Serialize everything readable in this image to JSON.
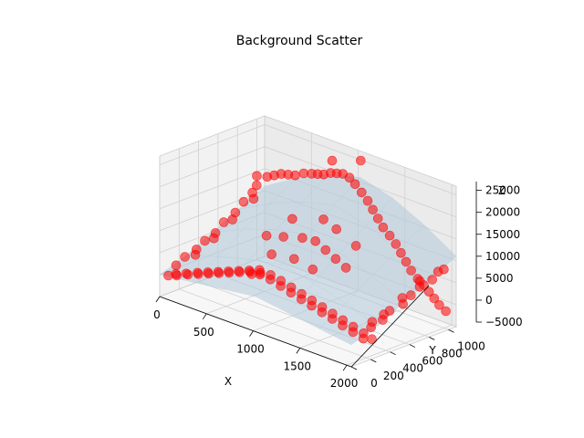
{
  "chart_data": {
    "type": "scatter",
    "title": "Background Scatter",
    "xlabel": "X",
    "ylabel": "Y",
    "zlabel": "Z",
    "xlim": [
      0,
      2048
    ],
    "ylim": [
      0,
      1080
    ],
    "zlim": [
      -5000,
      27000
    ],
    "x_ticks": [
      0,
      500,
      1000,
      1500,
      2000
    ],
    "y_ticks": [
      0,
      200,
      400,
      600,
      800,
      1000
    ],
    "z_ticks": [
      -5000,
      0,
      5000,
      10000,
      15000,
      20000,
      25000
    ],
    "x_tick_labels": [
      "0",
      "500",
      "1000",
      "1500",
      "2000"
    ],
    "y_tick_labels": [
      "0",
      "200",
      "400",
      "600",
      "800",
      "1000"
    ],
    "z_tick_labels": [
      "−5000",
      "0",
      "5000",
      "10000",
      "15000",
      "20000",
      "25000"
    ],
    "grid": true,
    "colors": {
      "points": "#ff0000",
      "surface": "#b0c8d8",
      "pane_back": "#ebebeb",
      "pane_side": "#f2f2f2",
      "pane_floor": "#f7f7f7",
      "grid": "#d0d0d0"
    },
    "series": [
      {
        "kind": "points",
        "points": [
          [
            0,
            1000,
            14000
          ],
          [
            100,
            1010,
            14500
          ],
          [
            180,
            1005,
            15500
          ],
          [
            260,
            1000,
            16500
          ],
          [
            340,
            995,
            17000
          ],
          [
            420,
            990,
            17500
          ],
          [
            500,
            1000,
            18500
          ],
          [
            580,
            1005,
            19000
          ],
          [
            650,
            1000,
            19500
          ],
          [
            720,
            995,
            20000
          ],
          [
            800,
            990,
            21000
          ],
          [
            870,
            985,
            21500
          ],
          [
            940,
            980,
            22000
          ],
          [
            1000,
            990,
            21500
          ],
          [
            1060,
            990,
            20500
          ],
          [
            1120,
            1000,
            19000
          ],
          [
            1180,
            1005,
            17500
          ],
          [
            1240,
            1000,
            16000
          ],
          [
            1300,
            995,
            14500
          ],
          [
            1360,
            990,
            13000
          ],
          [
            1420,
            1000,
            11500
          ],
          [
            1480,
            1005,
            10000
          ],
          [
            1540,
            1000,
            8500
          ],
          [
            1600,
            995,
            7000
          ],
          [
            1660,
            990,
            5500
          ],
          [
            1720,
            1000,
            4000
          ],
          [
            1780,
            1005,
            3000
          ],
          [
            1840,
            1000,
            2000
          ],
          [
            1900,
            995,
            1000
          ],
          [
            1960,
            990,
            0
          ],
          [
            2020,
            1000,
            -1000
          ],
          [
            1100,
            1010,
            26000
          ],
          [
            820,
            985,
            24000
          ],
          [
            30,
            60,
            -500
          ],
          [
            80,
            90,
            0
          ],
          [
            130,
            50,
            400
          ],
          [
            180,
            100,
            800
          ],
          [
            230,
            70,
            1200
          ],
          [
            280,
            120,
            1600
          ],
          [
            330,
            80,
            2000
          ],
          [
            380,
            130,
            2400
          ],
          [
            430,
            90,
            2800
          ],
          [
            480,
            140,
            3200
          ],
          [
            530,
            100,
            3600
          ],
          [
            580,
            150,
            4000
          ],
          [
            630,
            110,
            4400
          ],
          [
            680,
            160,
            4800
          ],
          [
            730,
            120,
            5200
          ],
          [
            780,
            170,
            5600
          ],
          [
            830,
            130,
            6000
          ],
          [
            880,
            180,
            6400
          ],
          [
            920,
            60,
            6800
          ],
          [
            960,
            110,
            7000
          ],
          [
            1000,
            70,
            7200
          ],
          [
            1050,
            130,
            7000
          ],
          [
            1100,
            80,
            6800
          ],
          [
            1150,
            140,
            6400
          ],
          [
            1200,
            90,
            6000
          ],
          [
            1250,
            150,
            5600
          ],
          [
            1300,
            100,
            5200
          ],
          [
            1350,
            160,
            4800
          ],
          [
            1400,
            110,
            4400
          ],
          [
            1450,
            170,
            4000
          ],
          [
            1500,
            120,
            3600
          ],
          [
            1550,
            180,
            3200
          ],
          [
            1600,
            130,
            2800
          ],
          [
            1650,
            190,
            2400
          ],
          [
            1700,
            140,
            2000
          ],
          [
            1750,
            200,
            1600
          ],
          [
            1800,
            150,
            1200
          ],
          [
            1850,
            210,
            800
          ],
          [
            1900,
            160,
            400
          ],
          [
            1950,
            220,
            0
          ],
          [
            2000,
            170,
            -400
          ],
          [
            2030,
            230,
            -800
          ],
          [
            20,
            150,
            1000
          ],
          [
            10,
            250,
            2000
          ],
          [
            30,
            350,
            3000
          ],
          [
            15,
            450,
            4000
          ],
          [
            25,
            550,
            5000
          ],
          [
            10,
            650,
            6500
          ],
          [
            30,
            750,
            8000
          ],
          [
            15,
            850,
            9500
          ],
          [
            25,
            930,
            11000
          ],
          [
            60,
            500,
            4500
          ],
          [
            50,
            700,
            7000
          ],
          [
            70,
            300,
            2500
          ],
          [
            90,
            880,
            10500
          ],
          [
            40,
            960,
            12500
          ],
          [
            2000,
            250,
            1500
          ],
          [
            2020,
            350,
            2500
          ],
          [
            1990,
            450,
            3500
          ],
          [
            2030,
            550,
            4500
          ],
          [
            2010,
            650,
            5500
          ],
          [
            2000,
            750,
            6500
          ],
          [
            2030,
            850,
            7500
          ],
          [
            2010,
            930,
            8500
          ],
          [
            1970,
            600,
            5000
          ],
          [
            1950,
            800,
            7000
          ],
          [
            1980,
            400,
            3000
          ],
          [
            2040,
            960,
            9000
          ],
          [
            1960,
            300,
            2000
          ],
          [
            560,
            560,
            8500
          ],
          [
            700,
            600,
            9000
          ],
          [
            850,
            650,
            9500
          ],
          [
            1000,
            640,
            10000
          ],
          [
            1150,
            600,
            9500
          ],
          [
            1300,
            560,
            9000
          ],
          [
            1450,
            520,
            8500
          ],
          [
            760,
            420,
            7000
          ],
          [
            980,
            440,
            7500
          ],
          [
            1200,
            420,
            7000
          ],
          [
            920,
            800,
            13000
          ],
          [
            1100,
            760,
            12500
          ],
          [
            650,
            740,
            11500
          ],
          [
            1350,
            720,
            11000
          ]
        ]
      },
      {
        "kind": "surface",
        "z": [
          [
            0,
            1000,
            2000,
            3000,
            2000,
            1000,
            0
          ],
          [
            2000,
            4500,
            6500,
            8000,
            6500,
            4500,
            2000
          ],
          [
            5000,
            8500,
            11000,
            12500,
            11000,
            8500,
            5000
          ],
          [
            8000,
            12000,
            15000,
            17000,
            15000,
            12000,
            8000
          ],
          [
            11000,
            15500,
            19000,
            21000,
            19000,
            15500,
            11000
          ]
        ]
      }
    ]
  }
}
